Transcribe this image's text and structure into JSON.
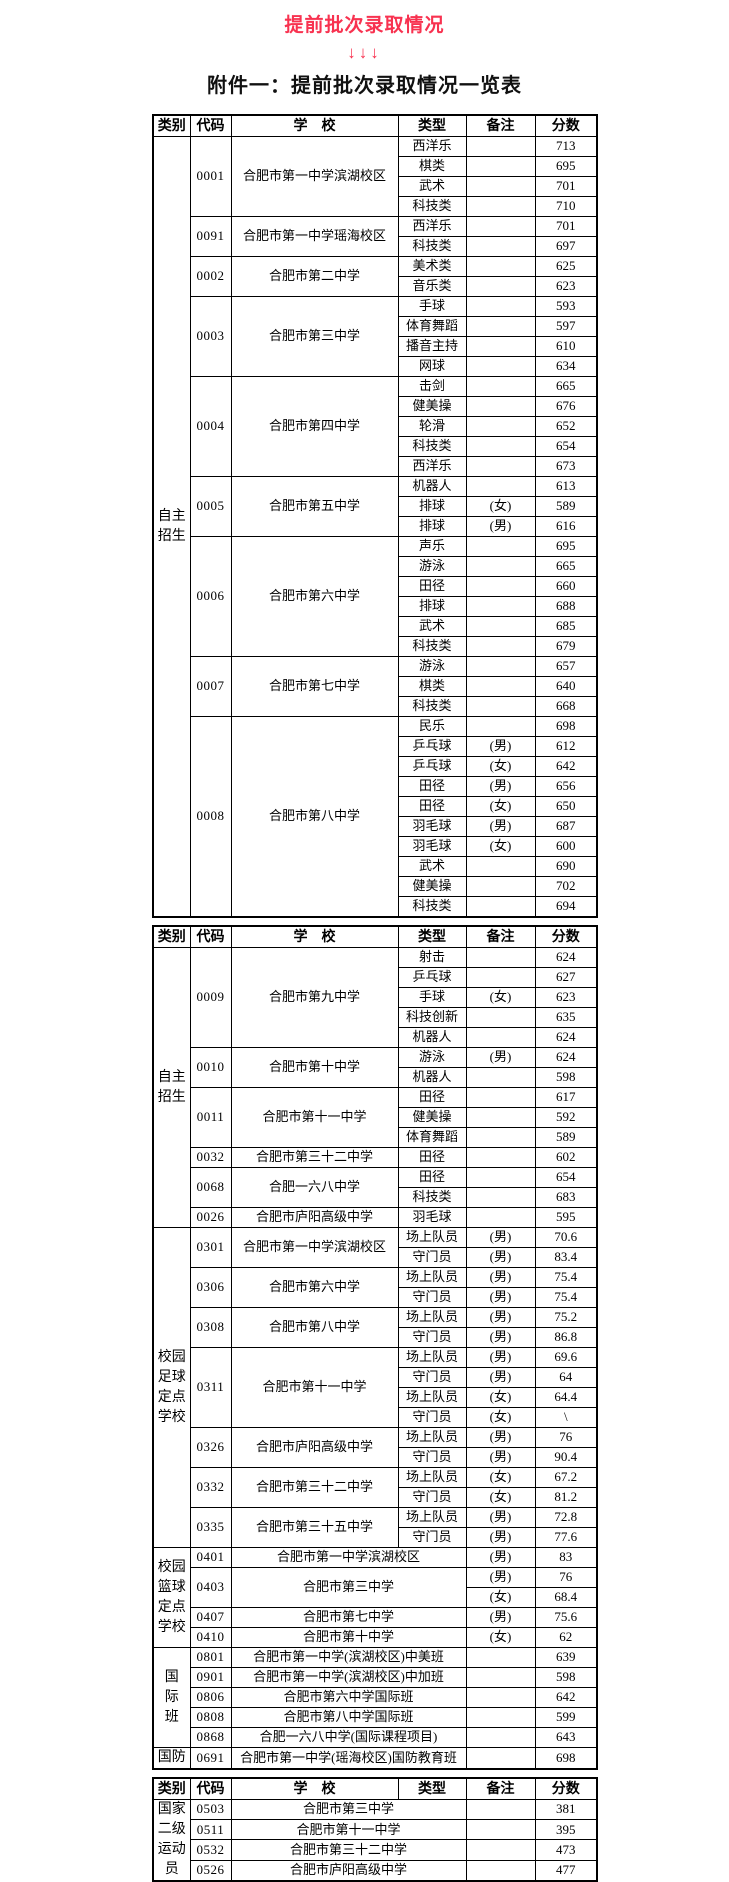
{
  "header": {
    "red_title": "提前批次录取情况",
    "arrows": "↓↓↓",
    "attachment_title": "附件一：提前批次录取情况一览表",
    "accent_color": "#f83250"
  },
  "tables": [
    {
      "header": [
        "类别",
        "代码",
        "学　校",
        "类型",
        "备注",
        "分数"
      ],
      "sections": [
        {
          "category": "自主\n招生",
          "groups": [
            {
              "code": "0001",
              "school": "合肥市第一中学滨湖校区",
              "rows": [
                {
                  "type": "西洋乐",
                  "remark": "",
                  "score": "713"
                },
                {
                  "type": "棋类",
                  "remark": "",
                  "score": "695"
                },
                {
                  "type": "武术",
                  "remark": "",
                  "score": "701"
                },
                {
                  "type": "科技类",
                  "remark": "",
                  "score": "710"
                }
              ]
            },
            {
              "code": "0091",
              "school": "合肥市第一中学瑶海校区",
              "rows": [
                {
                  "type": "西洋乐",
                  "remark": "",
                  "score": "701"
                },
                {
                  "type": "科技类",
                  "remark": "",
                  "score": "697"
                }
              ]
            },
            {
              "code": "0002",
              "school": "合肥市第二中学",
              "rows": [
                {
                  "type": "美术类",
                  "remark": "",
                  "score": "625"
                },
                {
                  "type": "音乐类",
                  "remark": "",
                  "score": "623"
                }
              ]
            },
            {
              "code": "0003",
              "school": "合肥市第三中学",
              "rows": [
                {
                  "type": "手球",
                  "remark": "",
                  "score": "593"
                },
                {
                  "type": "体育舞蹈",
                  "remark": "",
                  "score": "597"
                },
                {
                  "type": "播音主持",
                  "remark": "",
                  "score": "610"
                },
                {
                  "type": "网球",
                  "remark": "",
                  "score": "634"
                }
              ]
            },
            {
              "code": "0004",
              "school": "合肥市第四中学",
              "rows": [
                {
                  "type": "击剑",
                  "remark": "",
                  "score": "665"
                },
                {
                  "type": "健美操",
                  "remark": "",
                  "score": "676"
                },
                {
                  "type": "轮滑",
                  "remark": "",
                  "score": "652"
                },
                {
                  "type": "科技类",
                  "remark": "",
                  "score": "654"
                },
                {
                  "type": "西洋乐",
                  "remark": "",
                  "score": "673"
                }
              ]
            },
            {
              "code": "0005",
              "school": "合肥市第五中学",
              "rows": [
                {
                  "type": "机器人",
                  "remark": "",
                  "score": "613"
                },
                {
                  "type": "排球",
                  "remark": "(女)",
                  "score": "589"
                },
                {
                  "type": "排球",
                  "remark": "(男)",
                  "score": "616"
                }
              ]
            },
            {
              "code": "0006",
              "school": "合肥市第六中学",
              "rows": [
                {
                  "type": "声乐",
                  "remark": "",
                  "score": "695"
                },
                {
                  "type": "游泳",
                  "remark": "",
                  "score": "665"
                },
                {
                  "type": "田径",
                  "remark": "",
                  "score": "660"
                },
                {
                  "type": "排球",
                  "remark": "",
                  "score": "688"
                },
                {
                  "type": "武术",
                  "remark": "",
                  "score": "685"
                },
                {
                  "type": "科技类",
                  "remark": "",
                  "score": "679"
                }
              ]
            },
            {
              "code": "0007",
              "school": "合肥市第七中学",
              "rows": [
                {
                  "type": "游泳",
                  "remark": "",
                  "score": "657"
                },
                {
                  "type": "棋类",
                  "remark": "",
                  "score": "640"
                },
                {
                  "type": "科技类",
                  "remark": "",
                  "score": "668"
                }
              ]
            },
            {
              "code": "0008",
              "school": "合肥市第八中学",
              "rows": [
                {
                  "type": "民乐",
                  "remark": "",
                  "score": "698"
                },
                {
                  "type": "乒乓球",
                  "remark": "(男)",
                  "score": "612"
                },
                {
                  "type": "乒乓球",
                  "remark": "(女)",
                  "score": "642"
                },
                {
                  "type": "田径",
                  "remark": "(男)",
                  "score": "656"
                },
                {
                  "type": "田径",
                  "remark": "(女)",
                  "score": "650"
                },
                {
                  "type": "羽毛球",
                  "remark": "(男)",
                  "score": "687"
                },
                {
                  "type": "羽毛球",
                  "remark": "(女)",
                  "score": "600"
                },
                {
                  "type": "武术",
                  "remark": "",
                  "score": "690"
                },
                {
                  "type": "健美操",
                  "remark": "",
                  "score": "702"
                },
                {
                  "type": "科技类",
                  "remark": "",
                  "score": "694"
                }
              ]
            }
          ]
        }
      ]
    },
    {
      "header": [
        "类别",
        "代码",
        "学　校",
        "类型",
        "备注",
        "分数"
      ],
      "sections": [
        {
          "category": "自主\n招生",
          "groups": [
            {
              "code": "0009",
              "school": "合肥市第九中学",
              "rows": [
                {
                  "type": "射击",
                  "remark": "",
                  "score": "624"
                },
                {
                  "type": "乒乓球",
                  "remark": "",
                  "score": "627"
                },
                {
                  "type": "手球",
                  "remark": "(女)",
                  "score": "623"
                },
                {
                  "type": "科技创新",
                  "remark": "",
                  "score": "635"
                },
                {
                  "type": "机器人",
                  "remark": "",
                  "score": "624"
                }
              ]
            },
            {
              "code": "0010",
              "school": "合肥市第十中学",
              "rows": [
                {
                  "type": "游泳",
                  "remark": "(男)",
                  "score": "624"
                },
                {
                  "type": "机器人",
                  "remark": "",
                  "score": "598"
                }
              ]
            },
            {
              "code": "0011",
              "school": "合肥市第十一中学",
              "rows": [
                {
                  "type": "田径",
                  "remark": "",
                  "score": "617"
                },
                {
                  "type": "健美操",
                  "remark": "",
                  "score": "592"
                },
                {
                  "type": "体育舞蹈",
                  "remark": "",
                  "score": "589"
                }
              ]
            },
            {
              "code": "0032",
              "school": "合肥市第三十二中学",
              "rows": [
                {
                  "type": "田径",
                  "remark": "",
                  "score": "602"
                }
              ]
            },
            {
              "code": "0068",
              "school": "合肥一六八中学",
              "rows": [
                {
                  "type": "田径",
                  "remark": "",
                  "score": "654"
                },
                {
                  "type": "科技类",
                  "remark": "",
                  "score": "683"
                }
              ]
            },
            {
              "code": "0026",
              "school": "合肥市庐阳高级中学",
              "rows": [
                {
                  "type": "羽毛球",
                  "remark": "",
                  "score": "595"
                }
              ]
            }
          ]
        },
        {
          "category": "校园\n足球\n定点\n学校",
          "groups": [
            {
              "code": "0301",
              "school": "合肥市第一中学滨湖校区",
              "rows": [
                {
                  "type": "场上队员",
                  "remark": "(男)",
                  "score": "70.6"
                },
                {
                  "type": "守门员",
                  "remark": "(男)",
                  "score": "83.4"
                }
              ]
            },
            {
              "code": "0306",
              "school": "合肥市第六中学",
              "rows": [
                {
                  "type": "场上队员",
                  "remark": "(男)",
                  "score": "75.4"
                },
                {
                  "type": "守门员",
                  "remark": "(男)",
                  "score": "75.4"
                }
              ]
            },
            {
              "code": "0308",
              "school": "合肥市第八中学",
              "rows": [
                {
                  "type": "场上队员",
                  "remark": "(男)",
                  "score": "75.2"
                },
                {
                  "type": "守门员",
                  "remark": "(男)",
                  "score": "86.8"
                }
              ]
            },
            {
              "code": "0311",
              "school": "合肥市第十一中学",
              "rows": [
                {
                  "type": "场上队员",
                  "remark": "(男)",
                  "score": "69.6"
                },
                {
                  "type": "守门员",
                  "remark": "(男)",
                  "score": "64"
                },
                {
                  "type": "场上队员",
                  "remark": "(女)",
                  "score": "64.4"
                },
                {
                  "type": "守门员",
                  "remark": "(女)",
                  "score": "\\"
                }
              ]
            },
            {
              "code": "0326",
              "school": "合肥市庐阳高级中学",
              "rows": [
                {
                  "type": "场上队员",
                  "remark": "(男)",
                  "score": "76"
                },
                {
                  "type": "守门员",
                  "remark": "(男)",
                  "score": "90.4"
                }
              ]
            },
            {
              "code": "0332",
              "school": "合肥市第三十二中学",
              "rows": [
                {
                  "type": "场上队员",
                  "remark": "(女)",
                  "score": "67.2"
                },
                {
                  "type": "守门员",
                  "remark": "(女)",
                  "score": "81.2"
                }
              ]
            },
            {
              "code": "0335",
              "school": "合肥市第三十五中学",
              "rows": [
                {
                  "type": "场上队员",
                  "remark": "(男)",
                  "score": "72.8"
                },
                {
                  "type": "守门员",
                  "remark": "(男)",
                  "score": "77.6"
                }
              ]
            }
          ]
        },
        {
          "category": "校园\n篮球\n定点\n学校",
          "groups": [
            {
              "code": "0401",
              "school": "合肥市第一中学滨湖校区",
              "merged": true,
              "rows": [
                {
                  "remark": "(男)",
                  "score": "83"
                }
              ]
            },
            {
              "code": "0403",
              "school": "合肥市第三中学",
              "merged": true,
              "rows": [
                {
                  "remark": "(男)",
                  "score": "76"
                },
                {
                  "remark": "(女)",
                  "score": "68.4"
                }
              ]
            },
            {
              "code": "0407",
              "school": "合肥市第七中学",
              "merged": true,
              "rows": [
                {
                  "remark": "(男)",
                  "score": "75.6"
                }
              ]
            },
            {
              "code": "0410",
              "school": "合肥市第十中学",
              "merged": true,
              "rows": [
                {
                  "remark": "(女)",
                  "score": "62"
                }
              ]
            }
          ]
        },
        {
          "category": "国\n际\n班",
          "groups": [
            {
              "code": "0801",
              "school": "合肥市第一中学(滨湖校区)中美班",
              "merged": true,
              "rows": [
                {
                  "remark": "",
                  "score": "639"
                }
              ]
            },
            {
              "code": "0901",
              "school": "合肥市第一中学(滨湖校区)中加班",
              "merged": true,
              "rows": [
                {
                  "remark": "",
                  "score": "598"
                }
              ]
            },
            {
              "code": "0806",
              "school": "合肥市第六中学国际班",
              "merged": true,
              "rows": [
                {
                  "remark": "",
                  "score": "642"
                }
              ]
            },
            {
              "code": "0808",
              "school": "合肥市第八中学国际班",
              "merged": true,
              "rows": [
                {
                  "remark": "",
                  "score": "599"
                }
              ]
            },
            {
              "code": "0868",
              "school": "合肥一六八中学(国际课程项目)",
              "merged": true,
              "rows": [
                {
                  "remark": "",
                  "score": "643"
                }
              ]
            }
          ]
        },
        {
          "category": "国防",
          "groups": [
            {
              "code": "0691",
              "school": "合肥市第一中学(瑶海校区)国防教育班",
              "merged": true,
              "rows": [
                {
                  "remark": "",
                  "score": "698"
                }
              ]
            }
          ]
        }
      ]
    },
    {
      "header": [
        "类别",
        "代码",
        "学　校",
        "类型",
        "备注",
        "分数"
      ],
      "sections": [
        {
          "category": "国家\n二级\n运动\n员",
          "groups": [
            {
              "code": "0503",
              "school": "合肥市第三中学",
              "merged": true,
              "rows": [
                {
                  "remark": "",
                  "score": "381"
                }
              ]
            },
            {
              "code": "0511",
              "school": "合肥市第十一中学",
              "merged": true,
              "rows": [
                {
                  "remark": "",
                  "score": "395"
                }
              ]
            },
            {
              "code": "0532",
              "school": "合肥市第三十二中学",
              "merged": true,
              "rows": [
                {
                  "remark": "",
                  "score": "473"
                }
              ]
            },
            {
              "code": "0526",
              "school": "合肥市庐阳高级中学",
              "merged": true,
              "rows": [
                {
                  "remark": "",
                  "score": "477"
                }
              ]
            }
          ]
        }
      ]
    }
  ]
}
